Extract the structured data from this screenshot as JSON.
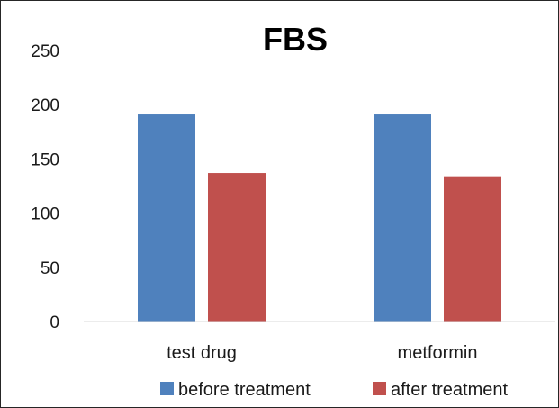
{
  "chart_data": {
    "type": "bar",
    "title": "FBS",
    "xlabel": "",
    "ylabel": "",
    "categories": [
      "test drug",
      "metformin"
    ],
    "series": [
      {
        "name": "before treatment",
        "values": [
          191,
          191
        ],
        "color": "#4F81BD"
      },
      {
        "name": "after treatment",
        "values": [
          137,
          134
        ],
        "color": "#C0504D"
      }
    ],
    "ylim": [
      0,
      250
    ],
    "yticks": [
      "0",
      "50",
      "100",
      "150",
      "200",
      "250"
    ],
    "grid": false,
    "legend": "bottom"
  }
}
